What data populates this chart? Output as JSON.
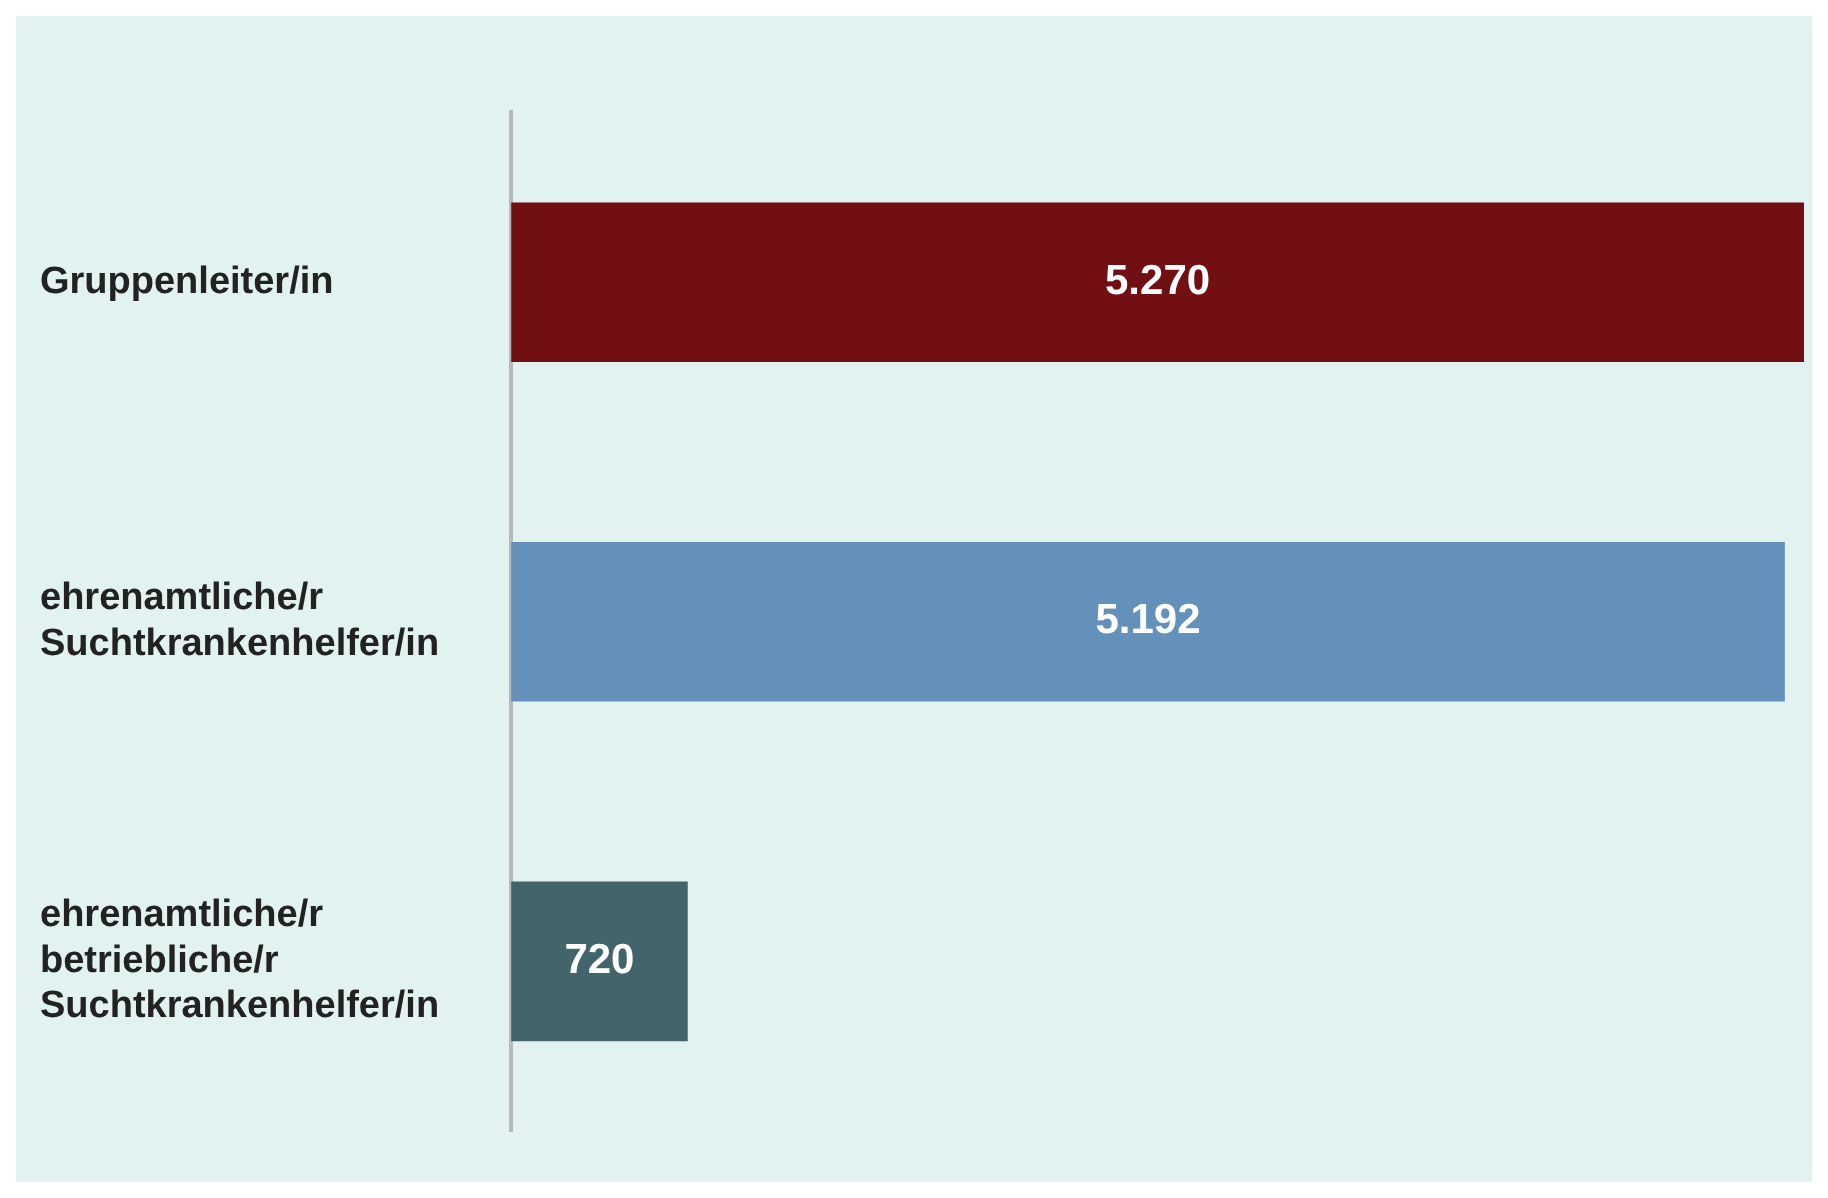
{
  "chart_data": {
    "type": "bar",
    "orientation": "horizontal",
    "categories": [
      "Gruppenleiter/in",
      "ehrenamtliche/r Suchtkrankenhelfer/in",
      "ehrenamtliche/r betriebliche/r Suchtkrankenhelfer/in"
    ],
    "values": [
      5270,
      5192,
      720
    ],
    "colors": [
      "#720f13",
      "#6391b9",
      "#42656b"
    ],
    "value_labels": [
      "5.270",
      "5.192",
      "720"
    ],
    "legend": false
  }
}
